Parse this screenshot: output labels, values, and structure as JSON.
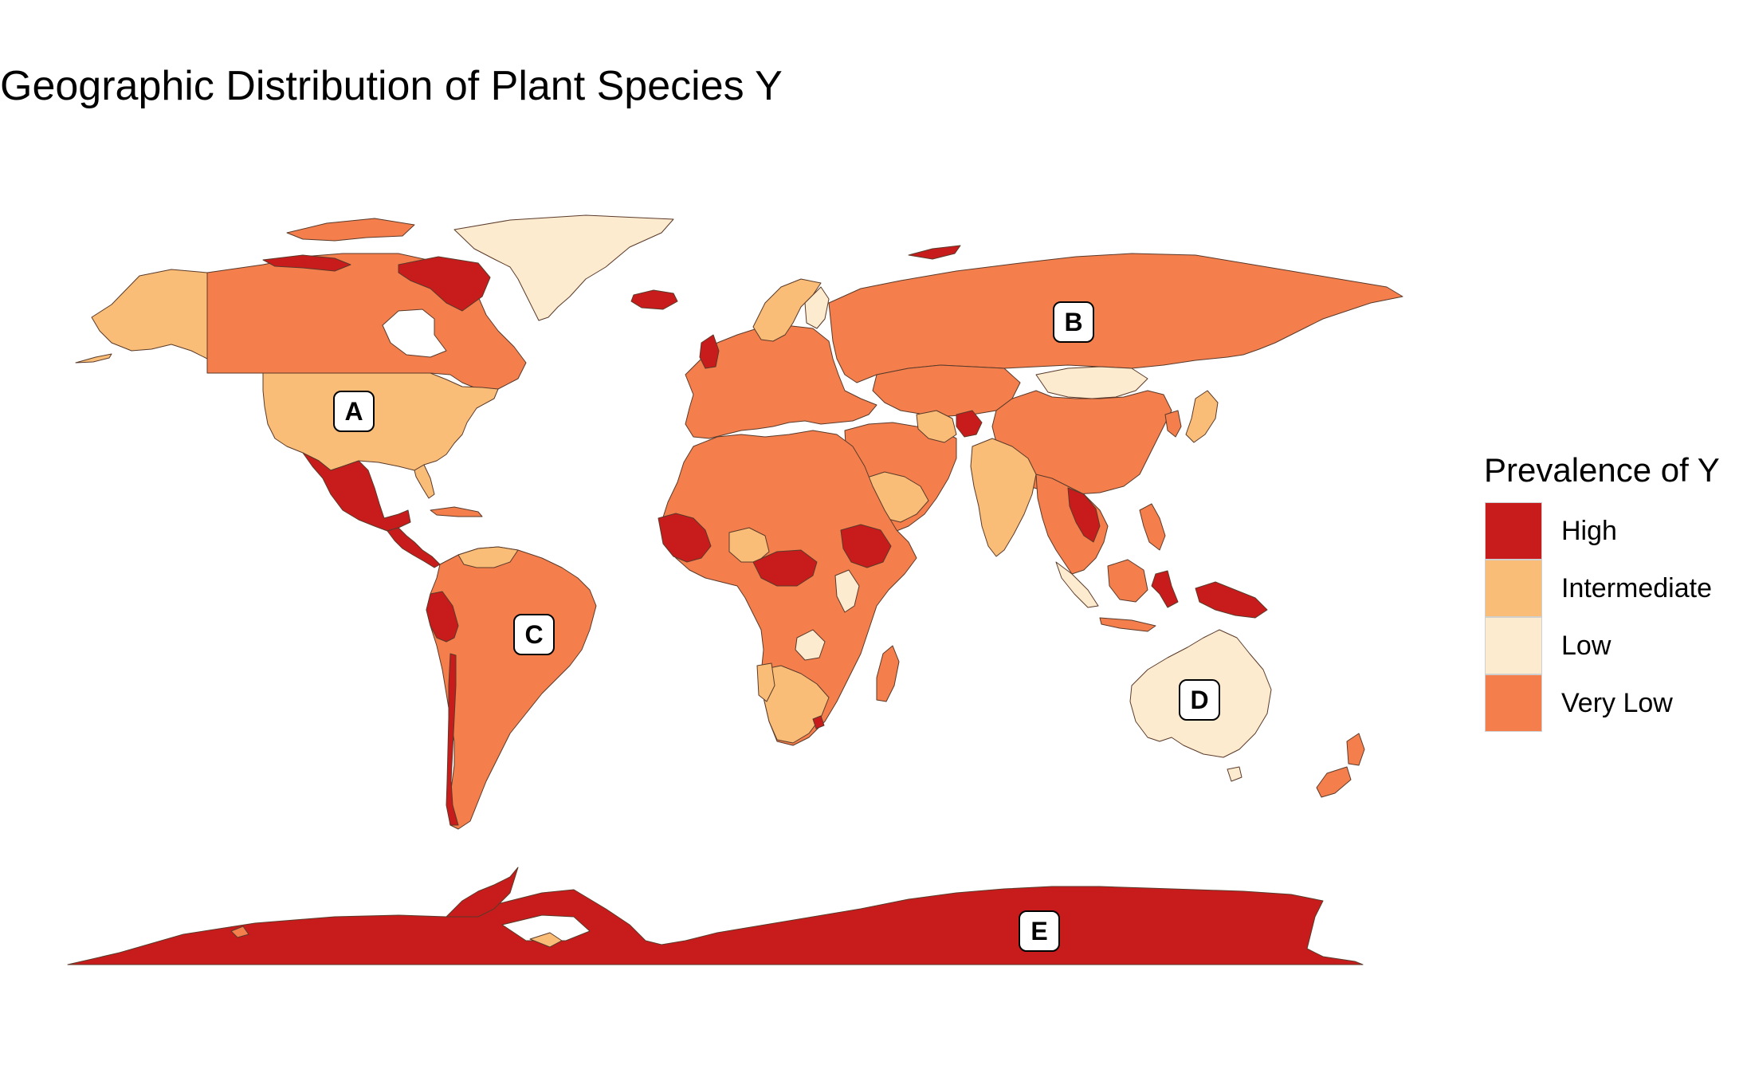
{
  "title": "Geographic Distribution of Plant Species Y",
  "legend": {
    "title": "Prevalence of Y",
    "items": [
      {
        "label": "High",
        "color": "#c81b1c"
      },
      {
        "label": "Intermediate",
        "color": "#f9bd77"
      },
      {
        "label": "Low",
        "color": "#fdebcf"
      },
      {
        "label": "Very Low",
        "color": "#f47f4d"
      }
    ]
  },
  "region_labels": [
    "A",
    "B",
    "C",
    "D",
    "E"
  ],
  "colors": {
    "high": "#c81b1c",
    "intermediate": "#f9bd77",
    "low": "#fdebcf",
    "very_low": "#f47f4d",
    "border": "#5a3a2a"
  }
}
